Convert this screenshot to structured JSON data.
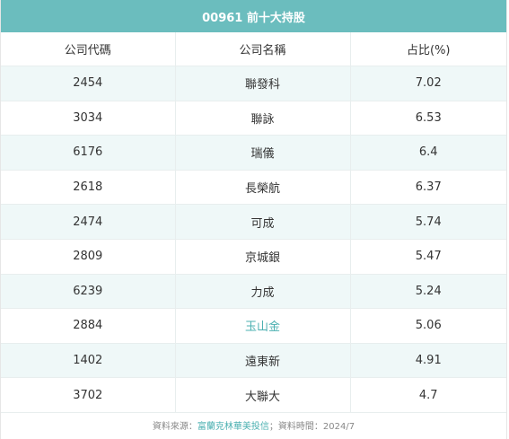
{
  "title": "00961 前十大持股",
  "columns": {
    "code": "公司代碼",
    "name": "公司名稱",
    "share": "占比(%)"
  },
  "rows": [
    {
      "code": "2454",
      "name": "聯發科",
      "share": "7.02",
      "link": false
    },
    {
      "code": "3034",
      "name": "聯詠",
      "share": "6.53",
      "link": false
    },
    {
      "code": "6176",
      "name": "瑞儀",
      "share": "6.4",
      "link": false
    },
    {
      "code": "2618",
      "name": "長榮航",
      "share": "6.37",
      "link": false
    },
    {
      "code": "2474",
      "name": "可成",
      "share": "5.74",
      "link": false
    },
    {
      "code": "2809",
      "name": "京城銀",
      "share": "5.47",
      "link": false
    },
    {
      "code": "6239",
      "name": "力成",
      "share": "5.24",
      "link": false
    },
    {
      "code": "2884",
      "name": "玉山金",
      "share": "5.06",
      "link": true
    },
    {
      "code": "1402",
      "name": "遠東新",
      "share": "4.91",
      "link": false
    },
    {
      "code": "3702",
      "name": "大聯大",
      "share": "4.7",
      "link": false
    }
  ],
  "footer": {
    "source_label": "資料來源：",
    "source_name": "富蘭克林華美投信",
    "date_label": "；資料時間：2024/7"
  }
}
